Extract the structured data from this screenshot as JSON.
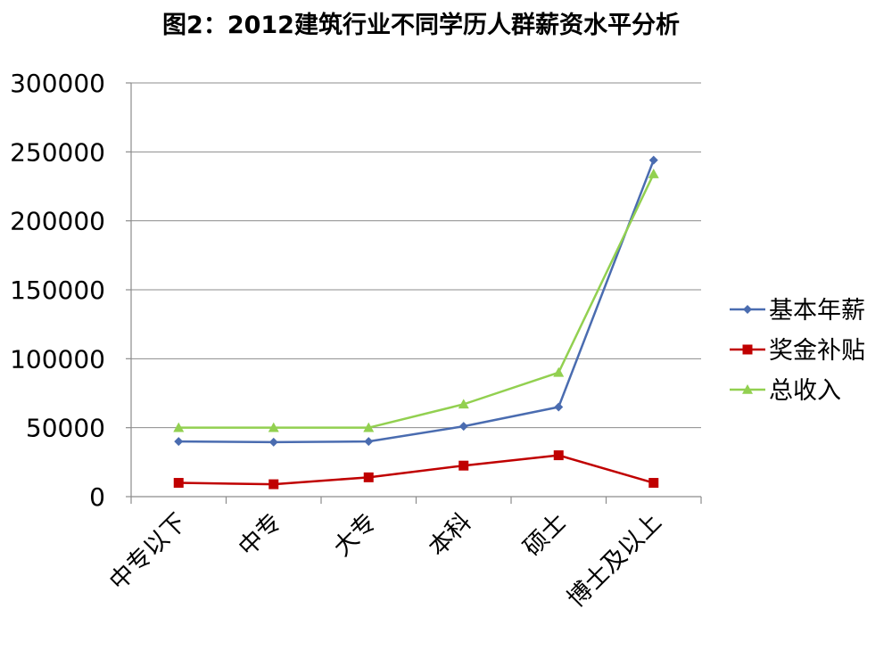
{
  "chart_data": {
    "type": "line",
    "title": "图2：2012建筑行业不同学历人群薪资水平分析",
    "xlabel": "",
    "ylabel": "",
    "categories": [
      "中专以下",
      "中专",
      "大专",
      "本科",
      "硕士",
      "博士及以上"
    ],
    "yticks": [
      "0",
      "50000",
      "100000",
      "150000",
      "200000",
      "250000",
      "300000"
    ],
    "ylim": [
      0,
      300000
    ],
    "grid": true,
    "legend_position": "right",
    "series": [
      {
        "name": "基本年薪",
        "color": "#4a6cb0",
        "marker": "diamond",
        "values": [
          40000,
          39500,
          40000,
          51000,
          65000,
          244000
        ]
      },
      {
        "name": "奖金补贴",
        "color": "#c00000",
        "marker": "square",
        "values": [
          10000,
          9000,
          14000,
          22500,
          30000,
          10000
        ]
      },
      {
        "name": "总收入",
        "color": "#92d050",
        "marker": "triangle",
        "values": [
          50000,
          50000,
          50000,
          67000,
          90000,
          234000
        ]
      }
    ]
  }
}
